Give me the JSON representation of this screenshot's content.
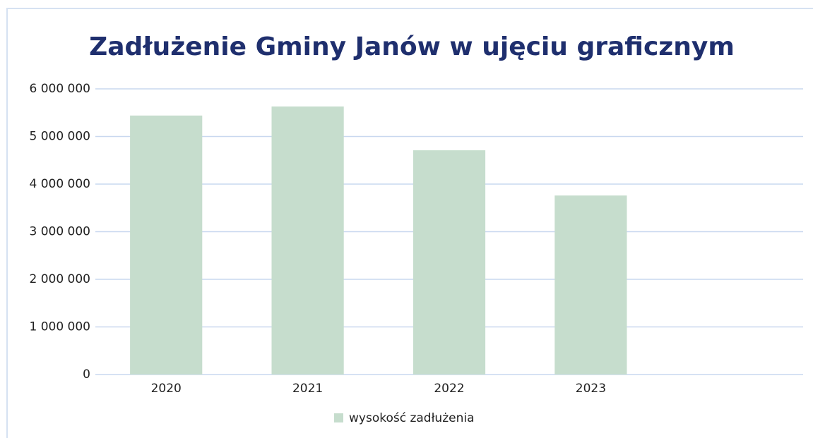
{
  "chart_data": {
    "type": "bar",
    "title": "Zadłużenie Gminy Janów w ujęciu graficznym",
    "categories": [
      "2020",
      "2021",
      "2022",
      "2023",
      null
    ],
    "series": [
      {
        "name": "wysokość zadłużenia",
        "color": "#c6ddcd",
        "values": [
          5440000,
          5630000,
          4710000,
          3760000,
          null
        ]
      }
    ],
    "ylim": [
      0,
      6000000
    ],
    "yticks": [
      0,
      {
        "value": 1000000,
        "label": "1 000 000"
      },
      {
        "value": 2000000,
        "label": "2 000 000"
      },
      {
        "value": 3000000,
        "label": "3 000 000"
      },
      {
        "value": 4000000,
        "label": "4 000 000"
      },
      {
        "value": 5000000,
        "label": "5 000 000"
      },
      {
        "value": 6000000,
        "label": "6 000 000"
      }
    ],
    "grid": true,
    "legend": "bottom"
  }
}
